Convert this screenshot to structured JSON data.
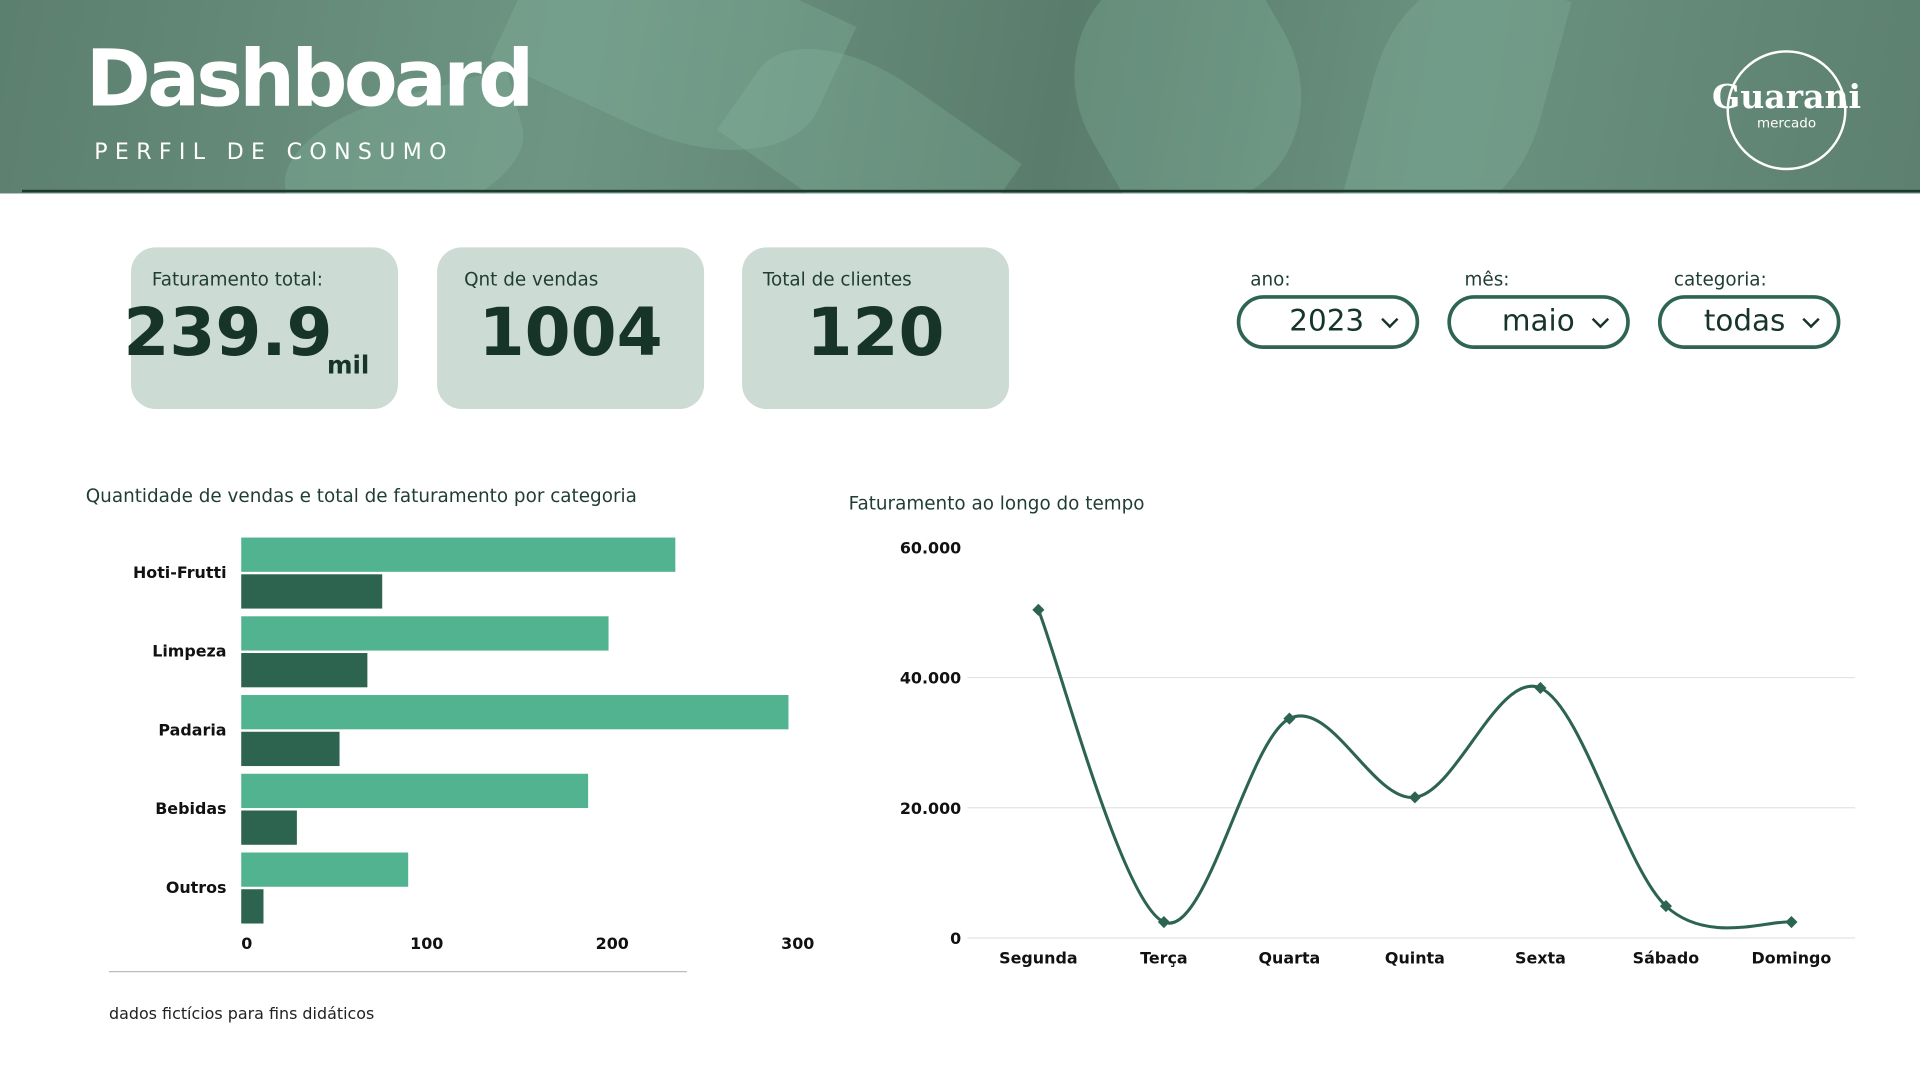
{
  "header": {
    "title": "Dashboard",
    "subtitle": "PERFIL DE CONSUMO",
    "logo_main": "Guarani",
    "logo_sub": "mercado"
  },
  "kpis": [
    {
      "label": "Faturamento total:",
      "value": "239.9",
      "unit": "mil"
    },
    {
      "label": "Qnt de vendas",
      "value": "1004"
    },
    {
      "label": "Total de clientes",
      "value": "120"
    }
  ],
  "filters": [
    {
      "label": "ano:",
      "value": "2023"
    },
    {
      "label": "mês:",
      "value": "maio"
    },
    {
      "label": "categoria:",
      "value": "todas"
    }
  ],
  "footnote": "dados fictícios para fins didáticos",
  "colors": {
    "header": "#5f8373",
    "card": "#cddbd5",
    "bar_light": "#52b391",
    "bar_dark": "#2c6450",
    "line": "#2c6450"
  },
  "chart_data": [
    {
      "type": "bar",
      "orientation": "horizontal",
      "title": "Quantidade de vendas e total de faturamento por categoria",
      "categories": [
        "Hoti-Frutti",
        "Limpeza",
        "Padaria",
        "Bebidas",
        "Outros"
      ],
      "series": [
        {
          "values": [
            234,
            198,
            295,
            187,
            90
          ],
          "color": "#52b391"
        },
        {
          "values": [
            76,
            68,
            53,
            30,
            12
          ],
          "color": "#2c6450"
        }
      ],
      "xlim": [
        0,
        300
      ],
      "xticks": [
        "0",
        "100",
        "200",
        "300"
      ],
      "grid": false
    },
    {
      "type": "line",
      "smooth": true,
      "title": "Faturamento ao longo do tempo",
      "categories": [
        "Segunda",
        "Terça",
        "Quarta",
        "Quinta",
        "Sexta",
        "Sábado",
        "Domingo"
      ],
      "values": [
        50400,
        2450,
        33700,
        21600,
        38400,
        4900,
        2450
      ],
      "ylim": [
        0,
        60000
      ],
      "yticks": [
        0,
        20000,
        40000,
        60000
      ],
      "ytick_labels": [
        "0",
        "20.000",
        "40.000",
        "60.000"
      ],
      "grid": true,
      "color": "#2c6450"
    }
  ]
}
